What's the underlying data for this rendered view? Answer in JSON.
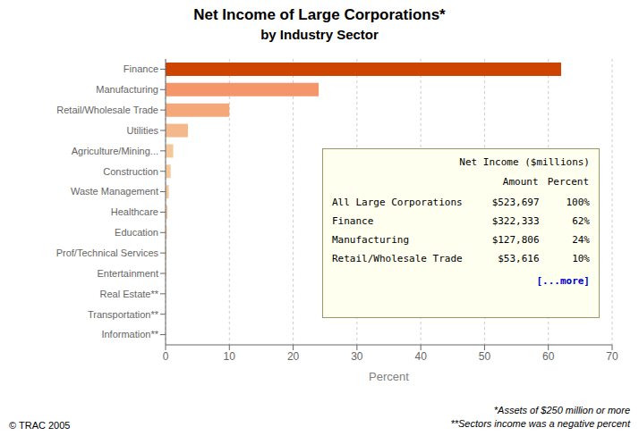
{
  "chart_data": {
    "type": "bar",
    "orientation": "horizontal",
    "title": "Net Income of Large Corporations*",
    "subtitle": "by Industry Sector",
    "categories": [
      "Finance",
      "Manufacturing",
      "Retail/Wholesale Trade",
      "Utilities",
      "Agriculture/Mining...",
      "Construction",
      "Waste Management",
      "Healthcare",
      "Education",
      "Prof/Technical Services",
      "Entertainment",
      "Real Estate**",
      "Transportation**",
      "Information**"
    ],
    "values": [
      62,
      24,
      10,
      3.5,
      1.2,
      0.8,
      0.5,
      0.3,
      0.2,
      0.15,
      0.1,
      0.05,
      0.03,
      0.02
    ],
    "colors": [
      "#cc4400",
      "#f4956a",
      "#f4a87a",
      "#f4b88a",
      "#f4c89a",
      "#f4c89a",
      "#f4c89a",
      "#f4c89a",
      "#f4c89a",
      "#f4c89a",
      "#f4c89a",
      "#f4c89a",
      "#f4c89a",
      "#f4c89a"
    ],
    "xlabel": "Percent",
    "xlim": [
      0,
      70
    ],
    "xticks": [
      0,
      10,
      20,
      30,
      40,
      50,
      60,
      70
    ],
    "grid": true,
    "table": {
      "title": "Net Income ($millions)",
      "columns": [
        "Amount",
        "Percent"
      ],
      "rows": [
        [
          "All Large Corporations",
          "$523,697",
          "100%"
        ],
        [
          "Finance",
          "$322,333",
          "62%"
        ],
        [
          "Manufacturing",
          "$127,806",
          "24%"
        ],
        [
          "Retail/Wholesale Trade",
          "$53,616",
          "10%"
        ]
      ],
      "more": "[...more]"
    },
    "annotations": [
      "© TRAC 2005",
      "*Assets of $250 million or more",
      "**Sectors income was a negative percent"
    ]
  }
}
